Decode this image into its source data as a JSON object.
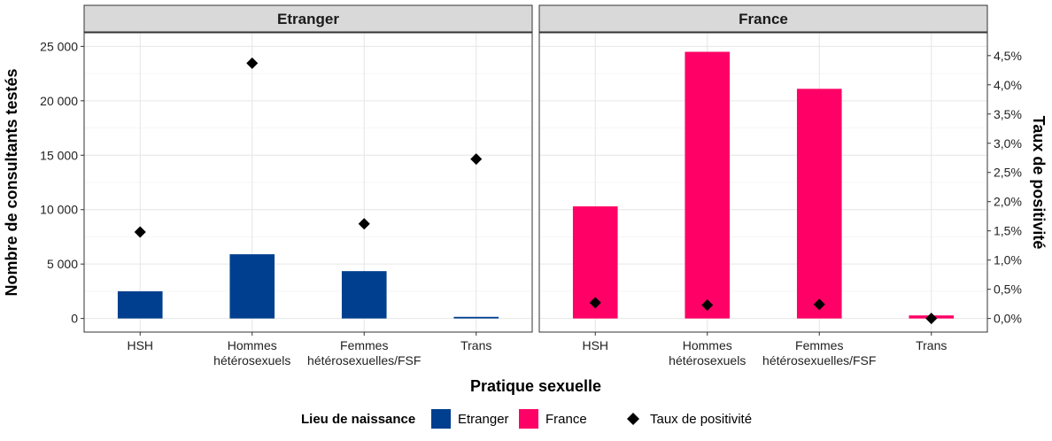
{
  "chart_data": {
    "type": "bar",
    "facets": [
      {
        "label": "Etranger",
        "color": "#003F8F"
      },
      {
        "label": "France",
        "color": "#FF0066"
      }
    ],
    "categories": [
      [
        "HSH"
      ],
      [
        "Hommes",
        "hétérosexuels"
      ],
      [
        "Femmes",
        "hétérosexuelles/FSF"
      ],
      [
        "Trans"
      ]
    ],
    "series": [
      {
        "name": "Etranger",
        "values": [
          2500,
          5900,
          4350,
          150
        ],
        "rates": [
          1.48,
          4.37,
          1.62,
          2.73
        ]
      },
      {
        "name": "France",
        "values": [
          10300,
          24500,
          21100,
          280
        ],
        "rates": [
          0.27,
          0.23,
          0.24,
          0.0
        ]
      }
    ],
    "y_left": {
      "label": "Nombre de consultants testés",
      "lim": [
        -1250,
        26250
      ],
      "ticks": [
        0,
        5000,
        10000,
        15000,
        20000,
        25000
      ],
      "tick_labels": [
        "0",
        "5 000",
        "10 000",
        "15 000",
        "20 000",
        "25 000"
      ]
    },
    "y_right": {
      "label": "Taux de positivité",
      "lim": [
        -0.2329,
        4.8913
      ],
      "ticks": [
        0,
        0.5,
        1.0,
        1.5,
        2.0,
        2.5,
        3.0,
        3.5,
        4.0,
        4.5
      ],
      "tick_labels": [
        "0,0%",
        "0,5%",
        "1,0%",
        "1,5%",
        "2,0%",
        "2,5%",
        "3,0%",
        "3,5%",
        "4,0%",
        "4,5%"
      ]
    },
    "xlabel": "Pratique sexuelle",
    "grid": true,
    "legend": {
      "position": "bottom",
      "title": "Lieu de naissance",
      "entries": [
        {
          "label": "Etranger",
          "color": "#003F8F",
          "shape": "square"
        },
        {
          "label": "France",
          "color": "#FF0066",
          "shape": "square"
        },
        {
          "label": "Taux de positivité",
          "color": "#000000",
          "shape": "diamond"
        }
      ]
    }
  }
}
